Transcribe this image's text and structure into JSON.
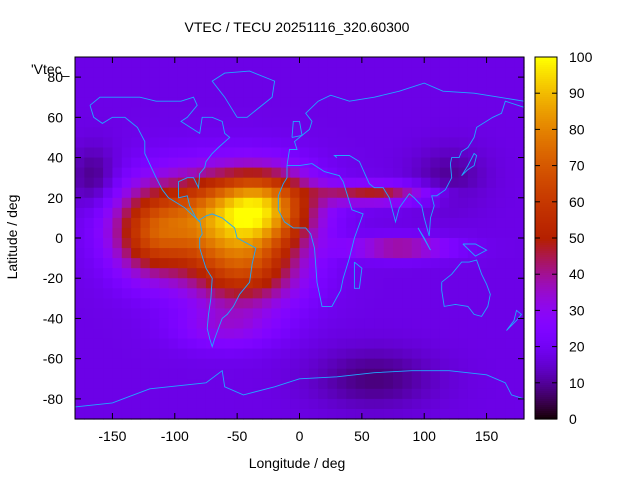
{
  "chart_data": {
    "type": "heatmap",
    "title": "VTEC / TECU 20251116_320.60300",
    "xlabel": "Longitude / deg",
    "ylabel": "Latitude / deg",
    "key_label": "'Vtec_",
    "xlim": [
      -180,
      180
    ],
    "ylim": [
      -90,
      90
    ],
    "x_ticks": [
      -150,
      -100,
      -50,
      0,
      50,
      100,
      150
    ],
    "y_ticks": [
      -80,
      -60,
      -40,
      -20,
      0,
      20,
      40,
      60,
      80
    ],
    "colorbar": {
      "min": 0,
      "max": 100,
      "ticks": [
        0,
        10,
        20,
        30,
        40,
        50,
        60,
        70,
        80,
        90,
        100
      ]
    },
    "tec_field": {
      "background": 18,
      "peaks": [
        {
          "lon": -30,
          "lat": 15,
          "amp": 58,
          "sx": 40,
          "sy": 18
        },
        {
          "lon": -80,
          "lat": 10,
          "amp": 44,
          "sx": 55,
          "sy": 22
        },
        {
          "lon": -45,
          "lat": -15,
          "amp": 40,
          "sx": 45,
          "sy": 20
        },
        {
          "lon": -120,
          "lat": 0,
          "amp": 28,
          "sx": 30,
          "sy": 20
        },
        {
          "lon": 60,
          "lat": 22,
          "amp": 30,
          "sx": 45,
          "sy": 5
        },
        {
          "lon": 80,
          "lat": -5,
          "amp": 26,
          "sx": 40,
          "sy": 5
        },
        {
          "lon": -60,
          "lat": -45,
          "amp": 12,
          "sx": 40,
          "sy": 10
        }
      ],
      "troughs": [
        {
          "lon": -165,
          "lat": 30,
          "amp": 10,
          "sx": 20,
          "sy": 15
        },
        {
          "lon": 120,
          "lat": 30,
          "amp": 8,
          "sx": 30,
          "sy": 15
        },
        {
          "lon": 60,
          "lat": -70,
          "amp": 10,
          "sx": 50,
          "sy": 15
        }
      ]
    },
    "coastlines": [
      [
        [
          -168,
          66
        ],
        [
          -160,
          70
        ],
        [
          -140,
          70
        ],
        [
          -128,
          70
        ],
        [
          -115,
          68
        ],
        [
          -95,
          68
        ],
        [
          -85,
          70
        ],
        [
          -82,
          66
        ],
        [
          -90,
          60
        ],
        [
          -95,
          58
        ],
        [
          -80,
          52
        ],
        [
          -78,
          60
        ],
        [
          -70,
          60
        ],
        [
          -62,
          58
        ],
        [
          -60,
          52
        ],
        [
          -56,
          50
        ],
        [
          -65,
          45
        ],
        [
          -70,
          42
        ],
        [
          -75,
          38
        ],
        [
          -76,
          35
        ],
        [
          -80,
          32
        ],
        [
          -81,
          25
        ],
        [
          -85,
          30
        ],
        [
          -90,
          30
        ],
        [
          -97,
          28
        ],
        [
          -97,
          20
        ],
        [
          -90,
          21
        ],
        [
          -88,
          16
        ],
        [
          -83,
          10
        ],
        [
          -80,
          8
        ],
        [
          -85,
          11
        ],
        [
          -92,
          15
        ],
        [
          -105,
          20
        ],
        [
          -110,
          24
        ],
        [
          -115,
          30
        ],
        [
          -118,
          34
        ],
        [
          -124,
          42
        ],
        [
          -124,
          48
        ],
        [
          -130,
          55
        ],
        [
          -140,
          60
        ],
        [
          -150,
          60
        ],
        [
          -158,
          57
        ],
        [
          -165,
          60
        ],
        [
          -168,
          66
        ]
      ],
      [
        [
          -80,
          9
        ],
        [
          -75,
          11
        ],
        [
          -70,
          12
        ],
        [
          -62,
          10
        ],
        [
          -52,
          5
        ],
        [
          -50,
          0
        ],
        [
          -44,
          -2
        ],
        [
          -35,
          -5
        ],
        [
          -38,
          -13
        ],
        [
          -40,
          -22
        ],
        [
          -48,
          -28
        ],
        [
          -53,
          -34
        ],
        [
          -58,
          -38
        ],
        [
          -62,
          -40
        ],
        [
          -65,
          -45
        ],
        [
          -68,
          -50
        ],
        [
          -70,
          -54
        ],
        [
          -72,
          -50
        ],
        [
          -74,
          -45
        ],
        [
          -73,
          -38
        ],
        [
          -71,
          -30
        ],
        [
          -70,
          -20
        ],
        [
          -75,
          -15
        ],
        [
          -80,
          -5
        ],
        [
          -80,
          0
        ],
        [
          -78,
          2
        ],
        [
          -80,
          9
        ]
      ],
      [
        [
          -10,
          36
        ],
        [
          0,
          36
        ],
        [
          10,
          37
        ],
        [
          20,
          33
        ],
        [
          32,
          31
        ],
        [
          35,
          28
        ],
        [
          42,
          14
        ],
        [
          51,
          12
        ],
        [
          44,
          0
        ],
        [
          40,
          -10
        ],
        [
          35,
          -20
        ],
        [
          33,
          -26
        ],
        [
          26,
          -34
        ],
        [
          18,
          -34
        ],
        [
          14,
          -22
        ],
        [
          12,
          -5
        ],
        [
          9,
          2
        ],
        [
          5,
          5
        ],
        [
          -5,
          5
        ],
        [
          -12,
          8
        ],
        [
          -17,
          14
        ],
        [
          -17,
          21
        ],
        [
          -13,
          27
        ],
        [
          -10,
          30
        ],
        [
          -10,
          36
        ]
      ],
      [
        [
          -10,
          36
        ],
        [
          -8,
          44
        ],
        [
          -2,
          44
        ],
        [
          -4,
          48
        ],
        [
          2,
          51
        ],
        [
          8,
          54
        ],
        [
          10,
          58
        ],
        [
          5,
          62
        ],
        [
          15,
          68
        ],
        [
          25,
          71
        ],
        [
          40,
          68
        ],
        [
          60,
          70
        ],
        [
          80,
          73
        ],
        [
          100,
          77
        ],
        [
          115,
          73
        ],
        [
          140,
          72
        ],
        [
          160,
          70
        ],
        [
          180,
          68
        ]
      ],
      [
        [
          30,
          40
        ],
        [
          28,
          41
        ],
        [
          40,
          41
        ],
        [
          48,
          38
        ],
        [
          56,
          27
        ],
        [
          60,
          25
        ],
        [
          67,
          25
        ],
        [
          72,
          20
        ],
        [
          77,
          8
        ],
        [
          80,
          15
        ],
        [
          88,
          22
        ],
        [
          92,
          20
        ],
        [
          98,
          16
        ],
        [
          100,
          10
        ],
        [
          104,
          1
        ],
        [
          105,
          10
        ],
        [
          108,
          16
        ],
        [
          106,
          21
        ],
        [
          110,
          21
        ],
        [
          117,
          24
        ],
        [
          122,
          30
        ],
        [
          121,
          37
        ],
        [
          122,
          40
        ],
        [
          128,
          40
        ],
        [
          130,
          43
        ],
        [
          135,
          45
        ],
        [
          140,
          50
        ],
        [
          142,
          55
        ],
        [
          155,
          60
        ],
        [
          162,
          62
        ],
        [
          165,
          68
        ],
        [
          180,
          65
        ]
      ],
      [
        [
          114,
          -22
        ],
        [
          122,
          -18
        ],
        [
          130,
          -12
        ],
        [
          136,
          -12
        ],
        [
          142,
          -11
        ],
        [
          146,
          -18
        ],
        [
          150,
          -23
        ],
        [
          153,
          -28
        ],
        [
          151,
          -34
        ],
        [
          146,
          -39
        ],
        [
          140,
          -38
        ],
        [
          135,
          -34
        ],
        [
          125,
          -33
        ],
        [
          116,
          -34
        ],
        [
          114,
          -26
        ],
        [
          114,
          -22
        ]
      ],
      [
        [
          -180,
          -84
        ],
        [
          -150,
          -82
        ],
        [
          -120,
          -75
        ],
        [
          -90,
          -73
        ],
        [
          -75,
          -72
        ],
        [
          -62,
          -66
        ],
        [
          -60,
          -74
        ],
        [
          -45,
          -78
        ],
        [
          -20,
          -74
        ],
        [
          0,
          -70
        ],
        [
          30,
          -69
        ],
        [
          60,
          -67
        ],
        [
          90,
          -66
        ],
        [
          120,
          -66
        ],
        [
          150,
          -68
        ],
        [
          165,
          -72
        ],
        [
          170,
          -78
        ],
        [
          180,
          -80
        ]
      ],
      [
        [
          -50,
          60
        ],
        [
          -42,
          60
        ],
        [
          -22,
          70
        ],
        [
          -20,
          78
        ],
        [
          -40,
          83
        ],
        [
          -60,
          82
        ],
        [
          -70,
          78
        ],
        [
          -60,
          70
        ],
        [
          -50,
          60
        ]
      ],
      [
        [
          44,
          -12
        ],
        [
          50,
          -15
        ],
        [
          48,
          -25
        ],
        [
          44,
          -25
        ],
        [
          44,
          -12
        ]
      ],
      [
        [
          -6,
          50
        ],
        [
          2,
          51
        ],
        [
          0,
          58
        ],
        [
          -5,
          58
        ],
        [
          -6,
          50
        ]
      ],
      [
        [
          130,
          31
        ],
        [
          135,
          34
        ],
        [
          140,
          36
        ],
        [
          142,
          41
        ],
        [
          140,
          42
        ],
        [
          135,
          36
        ],
        [
          130,
          31
        ]
      ],
      [
        [
          95,
          5
        ],
        [
          105,
          -6
        ],
        [
          100,
          0
        ],
        [
          95,
          5
        ]
      ],
      [
        [
          131,
          -3
        ],
        [
          141,
          -3
        ],
        [
          150,
          -6
        ],
        [
          141,
          -9
        ],
        [
          131,
          -3
        ]
      ],
      [
        [
          166,
          -46
        ],
        [
          174,
          -41
        ],
        [
          178,
          -38
        ],
        [
          174,
          -36
        ],
        [
          172,
          -41
        ],
        [
          166,
          -46
        ]
      ]
    ]
  }
}
